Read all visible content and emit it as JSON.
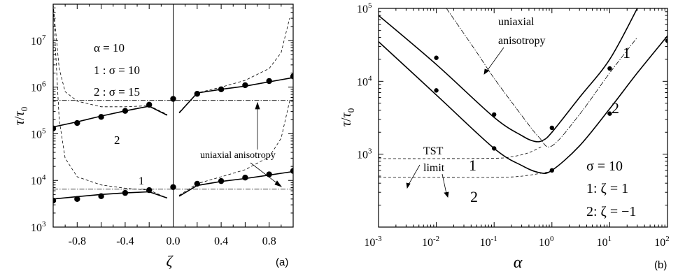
{
  "chart_data": [
    {
      "panel": "(a)",
      "type": "scatter",
      "xlabel": "ζ",
      "ylabel": "τ/τ₀",
      "ylabel_parts": {
        "main": "τ",
        "sep": "/",
        "sym": "τ",
        "sub": "0"
      },
      "xlim": [
        -1.0,
        1.0
      ],
      "ylim": [
        1000,
        60000000
      ],
      "yscale": "log",
      "grid": false,
      "xticks": [
        -0.8,
        -0.4,
        0.0,
        0.4,
        0.8
      ],
      "xtick_labels": [
        "-0.8",
        "-0.4",
        "0.0",
        "0.4",
        "0.8"
      ],
      "yticks": [
        {
          "value": 1000,
          "base": "10",
          "exp": "3"
        },
        {
          "value": 10000,
          "base": "10",
          "exp": "4"
        },
        {
          "value": 100000,
          "base": "10",
          "exp": "5"
        },
        {
          "value": 1000000,
          "base": "10",
          "exp": "6"
        },
        {
          "value": 10000000,
          "base": "10",
          "exp": "7"
        }
      ],
      "legend_lines": [
        "α = 10",
        "1 : σ = 10",
        "2 : σ = 15"
      ],
      "annotations": {
        "curve1": "1",
        "curve2": "2",
        "uniaxial": "uniaxial anisotropy"
      },
      "series": [
        {
          "label": "1",
          "style": "solid",
          "x": [
            -1.0,
            -0.8,
            -0.6,
            -0.4,
            -0.2,
            -0.05,
            0.05,
            0.2,
            0.4,
            0.6,
            0.8,
            1.0
          ],
          "y": [
            4000,
            4500,
            5000,
            5400,
            5700,
            4200,
            4600,
            7800,
            9500,
            11000,
            13000,
            15500
          ]
        },
        {
          "label": "1",
          "style": "dashed",
          "x": [
            -1.0,
            -0.95,
            -0.9,
            -0.8,
            -0.6,
            -0.4,
            -0.2,
            -0.05,
            0.05,
            0.2,
            0.4,
            0.6,
            0.8,
            0.9,
            0.97
          ],
          "y": [
            60000000,
            200000,
            30000,
            12000,
            8000,
            6800,
            6200,
            4200,
            4800,
            8500,
            12000,
            17000,
            32000,
            80000,
            500000
          ]
        },
        {
          "label": "1",
          "style": "dash-dot",
          "value": 6500
        },
        {
          "label": "1",
          "style": "markers",
          "x": [
            -1.0,
            -0.8,
            -0.6,
            -0.4,
            -0.2,
            0.0,
            0.2,
            0.4,
            0.6,
            0.8,
            1.0
          ],
          "y": [
            3700,
            4000,
            4600,
            5400,
            6200,
            7200,
            8500,
            9700,
            11500,
            13500,
            16000
          ]
        },
        {
          "label": "2",
          "style": "solid",
          "x": [
            -1.0,
            -0.8,
            -0.6,
            -0.4,
            -0.2,
            -0.05,
            0.05,
            0.2,
            0.4,
            0.6,
            0.8,
            1.0
          ],
          "y": [
            140000,
            180000,
            240000,
            310000,
            390000,
            250000,
            280000,
            750000,
            900000,
            1050000,
            1300000,
            1600000
          ]
        },
        {
          "label": "2",
          "style": "dashed",
          "x": [
            -1.0,
            -0.95,
            -0.9,
            -0.8,
            -0.6,
            -0.4,
            -0.2,
            -0.05,
            0.05,
            0.2,
            0.4,
            0.6,
            0.8,
            0.9,
            0.97
          ],
          "y": [
            60000000,
            2500000,
            800000,
            500000,
            380000,
            380000,
            400000,
            260000,
            290000,
            750000,
            1000000,
            1400000,
            2500000,
            5500000,
            30000000
          ]
        },
        {
          "label": "2",
          "style": "dash-dot",
          "value": 520000
        },
        {
          "label": "2",
          "style": "markers",
          "x": [
            -1.0,
            -0.8,
            -0.6,
            -0.4,
            -0.2,
            0.0,
            0.2,
            0.4,
            0.6,
            0.8,
            1.0
          ],
          "y": [
            130000,
            170000,
            230000,
            310000,
            420000,
            560000,
            720000,
            900000,
            1100000,
            1350000,
            1700000
          ]
        }
      ]
    },
    {
      "panel": "(b)",
      "type": "line",
      "xlabel": "α",
      "ylabel": "τ/τ₀",
      "ylabel_parts": {
        "main": "τ",
        "sep": "/",
        "sym": "τ",
        "sub": "0"
      },
      "xscale": "log",
      "yscale": "log",
      "xlim": [
        0.001,
        100
      ],
      "ylim": [
        100,
        100000
      ],
      "grid": false,
      "xticks": [
        {
          "value": 0.001,
          "base": "10",
          "exp": "-3"
        },
        {
          "value": 0.01,
          "base": "10",
          "exp": "-2"
        },
        {
          "value": 0.1,
          "base": "10",
          "exp": "-1"
        },
        {
          "value": 1,
          "base": "10",
          "exp": "0"
        },
        {
          "value": 10,
          "base": "10",
          "exp": "1"
        },
        {
          "value": 100,
          "base": "10",
          "exp": "2"
        }
      ],
      "yticks": [
        {
          "value": 1000,
          "base": "10",
          "exp": "3"
        },
        {
          "value": 10000,
          "base": "10",
          "exp": "4"
        },
        {
          "value": 100000,
          "base": "10",
          "exp": "5"
        }
      ],
      "legend_lines": [
        "σ = 10",
        "1: ζ = 1",
        "2: ζ = −1"
      ],
      "annotations": {
        "uniaxial_line1": "uniaxial",
        "uniaxial_line2": "anisotropy",
        "tst_line1": "TST",
        "tst_line2": "limit",
        "label_1_top": "1",
        "label_2_mid": "2",
        "label_1_tst": "1",
        "label_2_tst": "2"
      },
      "series": [
        {
          "label": "1",
          "style": "solid",
          "x": [
            0.001,
            0.01,
            0.1,
            0.3,
            0.5,
            0.7,
            1,
            3,
            10,
            30
          ],
          "y": [
            80000,
            17000,
            3200,
            1800,
            1500,
            1550,
            2000,
            6000,
            20000,
            100000
          ]
        },
        {
          "label": "2",
          "style": "solid",
          "x": [
            0.001,
            0.01,
            0.1,
            0.3,
            0.6,
            1,
            3,
            10,
            30,
            100
          ],
          "y": [
            35000,
            6500,
            1200,
            700,
            560,
            600,
            1300,
            4200,
            13000,
            42000
          ]
        },
        {
          "label": "uniaxial anisotropy",
          "style": "dash-dot",
          "x": [
            0.015,
            0.05,
            0.1,
            0.3,
            0.6,
            1,
            3,
            10,
            30
          ],
          "y": [
            100000,
            25000,
            11000,
            3400,
            1700,
            1300,
            3500,
            13000,
            40000
          ]
        },
        {
          "label": "TST limit 1",
          "style": "dashed",
          "x": [
            0.001,
            0.01,
            0.1,
            0.2,
            0.4,
            0.7
          ],
          "y": [
            870,
            870,
            880,
            920,
            1050,
            1300
          ]
        },
        {
          "label": "TST limit 2",
          "style": "dashed",
          "x": [
            0.001,
            0.01,
            0.1,
            0.3,
            1
          ],
          "y": [
            480,
            480,
            480,
            500,
            580
          ]
        },
        {
          "label": "1",
          "style": "markers",
          "x": [
            0.01,
            0.1,
            1,
            10,
            100
          ],
          "y": [
            21000,
            3500,
            2300,
            15000,
            36000
          ]
        },
        {
          "label": "2",
          "style": "markers",
          "x": [
            0.01,
            0.1,
            1,
            10,
            100
          ],
          "y": [
            7500,
            1200,
            600,
            3600,
            36000
          ]
        }
      ]
    }
  ]
}
